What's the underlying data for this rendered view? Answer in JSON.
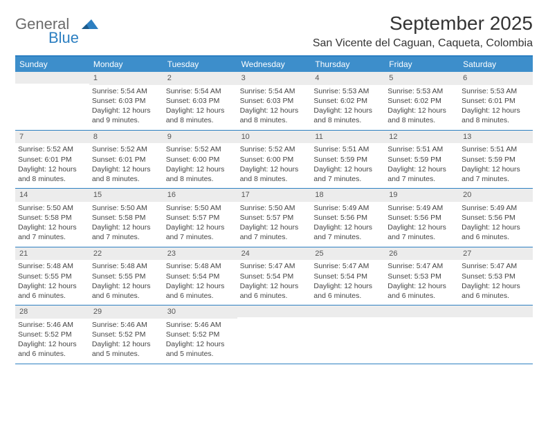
{
  "brand": {
    "word1": "General",
    "word2": "Blue",
    "mark_color": "#2c7fc1",
    "text_color": "#6b6b6b"
  },
  "title": "September 2025",
  "location": "San Vicente del Caguan, Caqueta, Colombia",
  "colors": {
    "header_bg": "#3d8ecb",
    "header_text": "#ffffff",
    "rule": "#2c7fc1",
    "daynum_bg": "#ececec",
    "body_text": "#444444",
    "background": "#ffffff"
  },
  "typography": {
    "title_fontsize": 28,
    "location_fontsize": 16,
    "weekday_fontsize": 12,
    "cell_fontsize": 10.5
  },
  "weekdays": [
    "Sunday",
    "Monday",
    "Tuesday",
    "Wednesday",
    "Thursday",
    "Friday",
    "Saturday"
  ],
  "weeks": [
    [
      null,
      {
        "n": "1",
        "sunrise": "Sunrise: 5:54 AM",
        "sunset": "Sunset: 6:03 PM",
        "daylight1": "Daylight: 12 hours",
        "daylight2": "and 9 minutes."
      },
      {
        "n": "2",
        "sunrise": "Sunrise: 5:54 AM",
        "sunset": "Sunset: 6:03 PM",
        "daylight1": "Daylight: 12 hours",
        "daylight2": "and 8 minutes."
      },
      {
        "n": "3",
        "sunrise": "Sunrise: 5:54 AM",
        "sunset": "Sunset: 6:03 PM",
        "daylight1": "Daylight: 12 hours",
        "daylight2": "and 8 minutes."
      },
      {
        "n": "4",
        "sunrise": "Sunrise: 5:53 AM",
        "sunset": "Sunset: 6:02 PM",
        "daylight1": "Daylight: 12 hours",
        "daylight2": "and 8 minutes."
      },
      {
        "n": "5",
        "sunrise": "Sunrise: 5:53 AM",
        "sunset": "Sunset: 6:02 PM",
        "daylight1": "Daylight: 12 hours",
        "daylight2": "and 8 minutes."
      },
      {
        "n": "6",
        "sunrise": "Sunrise: 5:53 AM",
        "sunset": "Sunset: 6:01 PM",
        "daylight1": "Daylight: 12 hours",
        "daylight2": "and 8 minutes."
      }
    ],
    [
      {
        "n": "7",
        "sunrise": "Sunrise: 5:52 AM",
        "sunset": "Sunset: 6:01 PM",
        "daylight1": "Daylight: 12 hours",
        "daylight2": "and 8 minutes."
      },
      {
        "n": "8",
        "sunrise": "Sunrise: 5:52 AM",
        "sunset": "Sunset: 6:01 PM",
        "daylight1": "Daylight: 12 hours",
        "daylight2": "and 8 minutes."
      },
      {
        "n": "9",
        "sunrise": "Sunrise: 5:52 AM",
        "sunset": "Sunset: 6:00 PM",
        "daylight1": "Daylight: 12 hours",
        "daylight2": "and 8 minutes."
      },
      {
        "n": "10",
        "sunrise": "Sunrise: 5:52 AM",
        "sunset": "Sunset: 6:00 PM",
        "daylight1": "Daylight: 12 hours",
        "daylight2": "and 8 minutes."
      },
      {
        "n": "11",
        "sunrise": "Sunrise: 5:51 AM",
        "sunset": "Sunset: 5:59 PM",
        "daylight1": "Daylight: 12 hours",
        "daylight2": "and 7 minutes."
      },
      {
        "n": "12",
        "sunrise": "Sunrise: 5:51 AM",
        "sunset": "Sunset: 5:59 PM",
        "daylight1": "Daylight: 12 hours",
        "daylight2": "and 7 minutes."
      },
      {
        "n": "13",
        "sunrise": "Sunrise: 5:51 AM",
        "sunset": "Sunset: 5:59 PM",
        "daylight1": "Daylight: 12 hours",
        "daylight2": "and 7 minutes."
      }
    ],
    [
      {
        "n": "14",
        "sunrise": "Sunrise: 5:50 AM",
        "sunset": "Sunset: 5:58 PM",
        "daylight1": "Daylight: 12 hours",
        "daylight2": "and 7 minutes."
      },
      {
        "n": "15",
        "sunrise": "Sunrise: 5:50 AM",
        "sunset": "Sunset: 5:58 PM",
        "daylight1": "Daylight: 12 hours",
        "daylight2": "and 7 minutes."
      },
      {
        "n": "16",
        "sunrise": "Sunrise: 5:50 AM",
        "sunset": "Sunset: 5:57 PM",
        "daylight1": "Daylight: 12 hours",
        "daylight2": "and 7 minutes."
      },
      {
        "n": "17",
        "sunrise": "Sunrise: 5:50 AM",
        "sunset": "Sunset: 5:57 PM",
        "daylight1": "Daylight: 12 hours",
        "daylight2": "and 7 minutes."
      },
      {
        "n": "18",
        "sunrise": "Sunrise: 5:49 AM",
        "sunset": "Sunset: 5:56 PM",
        "daylight1": "Daylight: 12 hours",
        "daylight2": "and 7 minutes."
      },
      {
        "n": "19",
        "sunrise": "Sunrise: 5:49 AM",
        "sunset": "Sunset: 5:56 PM",
        "daylight1": "Daylight: 12 hours",
        "daylight2": "and 7 minutes."
      },
      {
        "n": "20",
        "sunrise": "Sunrise: 5:49 AM",
        "sunset": "Sunset: 5:56 PM",
        "daylight1": "Daylight: 12 hours",
        "daylight2": "and 6 minutes."
      }
    ],
    [
      {
        "n": "21",
        "sunrise": "Sunrise: 5:48 AM",
        "sunset": "Sunset: 5:55 PM",
        "daylight1": "Daylight: 12 hours",
        "daylight2": "and 6 minutes."
      },
      {
        "n": "22",
        "sunrise": "Sunrise: 5:48 AM",
        "sunset": "Sunset: 5:55 PM",
        "daylight1": "Daylight: 12 hours",
        "daylight2": "and 6 minutes."
      },
      {
        "n": "23",
        "sunrise": "Sunrise: 5:48 AM",
        "sunset": "Sunset: 5:54 PM",
        "daylight1": "Daylight: 12 hours",
        "daylight2": "and 6 minutes."
      },
      {
        "n": "24",
        "sunrise": "Sunrise: 5:47 AM",
        "sunset": "Sunset: 5:54 PM",
        "daylight1": "Daylight: 12 hours",
        "daylight2": "and 6 minutes."
      },
      {
        "n": "25",
        "sunrise": "Sunrise: 5:47 AM",
        "sunset": "Sunset: 5:54 PM",
        "daylight1": "Daylight: 12 hours",
        "daylight2": "and 6 minutes."
      },
      {
        "n": "26",
        "sunrise": "Sunrise: 5:47 AM",
        "sunset": "Sunset: 5:53 PM",
        "daylight1": "Daylight: 12 hours",
        "daylight2": "and 6 minutes."
      },
      {
        "n": "27",
        "sunrise": "Sunrise: 5:47 AM",
        "sunset": "Sunset: 5:53 PM",
        "daylight1": "Daylight: 12 hours",
        "daylight2": "and 6 minutes."
      }
    ],
    [
      {
        "n": "28",
        "sunrise": "Sunrise: 5:46 AM",
        "sunset": "Sunset: 5:52 PM",
        "daylight1": "Daylight: 12 hours",
        "daylight2": "and 6 minutes."
      },
      {
        "n": "29",
        "sunrise": "Sunrise: 5:46 AM",
        "sunset": "Sunset: 5:52 PM",
        "daylight1": "Daylight: 12 hours",
        "daylight2": "and 5 minutes."
      },
      {
        "n": "30",
        "sunrise": "Sunrise: 5:46 AM",
        "sunset": "Sunset: 5:52 PM",
        "daylight1": "Daylight: 12 hours",
        "daylight2": "and 5 minutes."
      },
      null,
      null,
      null,
      null
    ]
  ]
}
